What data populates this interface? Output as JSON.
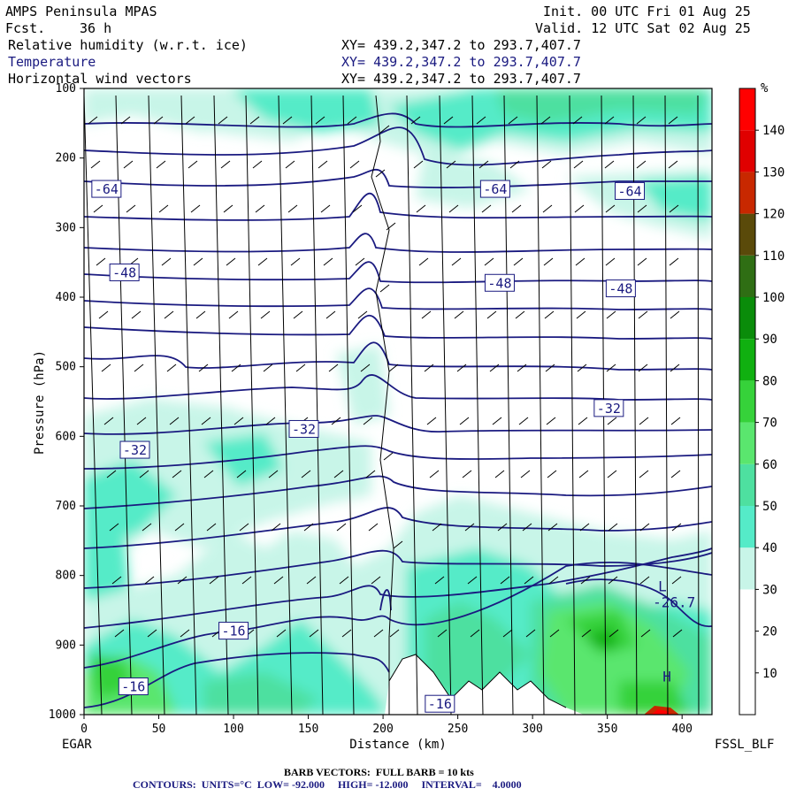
{
  "header": {
    "model": "AMPS Peninsula MPAS",
    "fcst_label": "Fcst.",
    "fcst_value": "36 h",
    "init": "Init. 00 UTC Fri 01 Aug 25",
    "valid": "Valid. 12 UTC Sat 02 Aug 25",
    "field1": "Relative humidity (w.r.t. ice)",
    "field2": "Temperature",
    "field3": "Horizontal wind vectors",
    "xy1": "XY= 439.2,347.2 to 293.7,407.7",
    "xy2": "XY= 439.2,347.2 to 293.7,407.7",
    "xy3": "XY= 439.2,347.2 to 293.7,407.7"
  },
  "footer": {
    "left_station": "EGAR",
    "right_station": "FSSL_BLF",
    "barb_note": "BARB VECTORS:  FULL BARB = 10 kts",
    "contour_note": "CONTOURS:  UNITS=°C  LOW= -92.000     HIGH= -12.000     INTERVAL=    4.0000"
  },
  "colors": {
    "contour": "#1a1a80",
    "rh_scale": [
      "#ffffff",
      "#ffffff",
      "#ffffff",
      "#c8f5e8",
      "#55ebc8",
      "#4ee0a0",
      "#5ae66e",
      "#36d23a",
      "#10b010",
      "#0a8c0a",
      "#2f6e14",
      "#5a4a0a",
      "#c82800",
      "#e00000",
      "#ff0000"
    ]
  },
  "chart_data": {
    "type": "heatmap",
    "xlabel": "Distance (km)",
    "ylabel": "Pressure (hPa)",
    "xlim": [
      0,
      420
    ],
    "ylim": [
      1000,
      100
    ],
    "x_ticks": [
      0,
      50,
      100,
      150,
      200,
      250,
      300,
      350,
      400
    ],
    "y_ticks": [
      100,
      200,
      300,
      400,
      500,
      600,
      700,
      800,
      900,
      1000
    ],
    "colorbar": {
      "unit": "%",
      "ticks": [
        10,
        20,
        30,
        40,
        50,
        60,
        70,
        80,
        90,
        100,
        110,
        120,
        130,
        140
      ],
      "bounds": [
        0,
        150
      ]
    },
    "contour_labels": [
      {
        "text": "-64",
        "x": 15,
        "p": 245
      },
      {
        "text": "-64",
        "x": 275,
        "p": 245
      },
      {
        "text": "-64",
        "x": 365,
        "p": 248
      },
      {
        "text": "-48",
        "x": 27,
        "p": 365
      },
      {
        "text": "-48",
        "x": 278,
        "p": 380
      },
      {
        "text": "-48",
        "x": 359,
        "p": 388
      },
      {
        "text": "-32",
        "x": 34,
        "p": 620
      },
      {
        "text": "-32",
        "x": 147,
        "p": 590
      },
      {
        "text": "-32",
        "x": 351,
        "p": 560
      },
      {
        "text": "-16",
        "x": 100,
        "p": 880
      },
      {
        "text": "-16",
        "x": 33,
        "p": 960
      },
      {
        "text": "-16",
        "x": 238,
        "p": 985
      }
    ],
    "extrema": [
      {
        "type": "L",
        "value": "-26.7",
        "x": 397,
        "p": 830
      },
      {
        "type": "H",
        "value": "",
        "x": 400,
        "p": 960
      }
    ]
  }
}
